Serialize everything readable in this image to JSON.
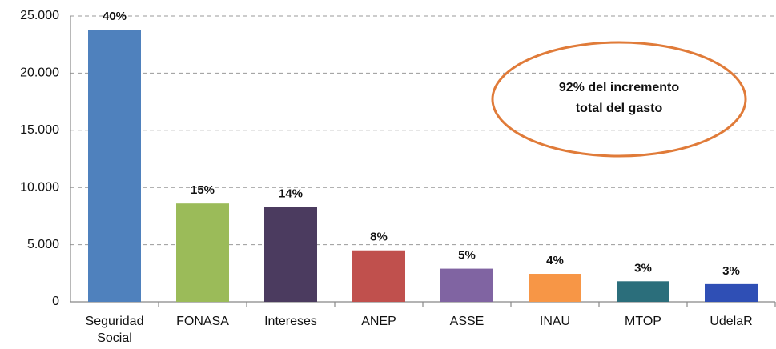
{
  "chart_data": {
    "type": "bar",
    "categories": [
      "Seguridad Social",
      "FONASA",
      "Intereses",
      "ANEP",
      "ASSE",
      "INAU",
      "MTOP",
      "UdelaR"
    ],
    "values": [
      23800,
      8600,
      8300,
      4500,
      2900,
      2450,
      1800,
      1550
    ],
    "share_labels": [
      "40%",
      "15%",
      "14%",
      "8%",
      "5%",
      "4%",
      "3%",
      "3%"
    ],
    "colors": [
      "#4f81bd",
      "#9bbb59",
      "#4b3b5f",
      "#c0504d",
      "#8064a2",
      "#f79646",
      "#2b6e7b",
      "#2f4fb5"
    ],
    "ylim": [
      0,
      25000
    ],
    "yticks": [
      0,
      {
        "value": 5000,
        "label": "5.000"
      },
      {
        "value": 10000,
        "label": "10.000"
      },
      {
        "value": 15000,
        "label": "15.000"
      },
      {
        "value": 20000,
        "label": "20.000"
      },
      {
        "value": 25000,
        "label": "25.000"
      }
    ],
    "grid": true,
    "annotation": [
      "92% del incremento",
      "total del gasto"
    ],
    "annotation_color": "#e07b39"
  }
}
